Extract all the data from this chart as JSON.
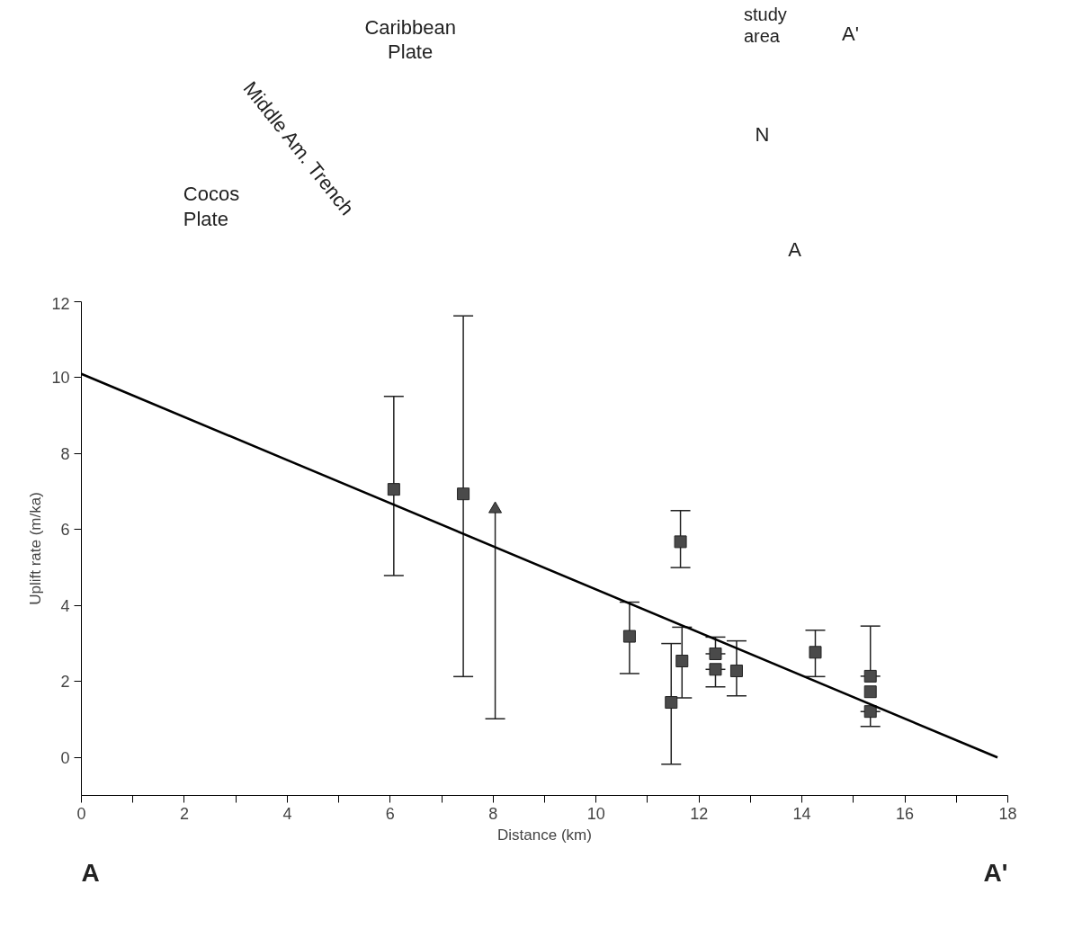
{
  "chart_data": {
    "type": "scatter",
    "xlabel": "Distance (km)",
    "ylabel": "Uplift rate (m/ka)",
    "xlim": [
      0,
      18
    ],
    "ylim": [
      -1,
      12
    ],
    "xticks": [
      0,
      {
        "value": 1,
        "label": null
      },
      2,
      {
        "value": 3,
        "label": null
      },
      4,
      {
        "value": 5,
        "label": null
      },
      6,
      {
        "value": 7,
        "label": null
      },
      8,
      {
        "value": 9,
        "label": null
      },
      10,
      {
        "value": 11,
        "label": null
      },
      12,
      {
        "value": 13,
        "label": null
      },
      14,
      {
        "value": 15,
        "label": null
      },
      16,
      {
        "value": 17,
        "label": null
      },
      18
    ],
    "yticks": [
      0,
      2,
      4,
      6,
      8,
      10,
      12
    ],
    "grid": false,
    "series": [
      {
        "marker": "square",
        "color": "#4a4a4a",
        "x": [
          6.07,
          7.42,
          10.65,
          11.64,
          11.46,
          11.67,
          12.32,
          12.32,
          12.73,
          14.26,
          15.33,
          15.33,
          15.33
        ],
        "values": [
          7.06,
          6.94,
          3.19,
          5.68,
          1.45,
          2.54,
          2.73,
          2.32,
          2.28,
          2.77,
          2.14,
          1.73,
          1.21
        ],
        "errors": [
          [
            4.79,
            9.51
          ],
          [
            2.13,
            11.63
          ],
          [
            2.21,
            4.09
          ],
          [
            5.0,
            6.5
          ],
          [
            -0.18,
            3.0
          ],
          [
            1.57,
            3.43
          ],
          [
            2.73,
            3.17
          ],
          [
            1.86,
            2.32
          ],
          [
            1.62,
            3.07
          ],
          [
            2.13,
            3.35
          ],
          [
            2.14,
            3.46
          ],
          null,
          [
            0.82,
            1.21
          ]
        ]
      },
      {
        "marker": "triangle",
        "color": "#4a4a4a",
        "x": [
          8.04
        ],
        "values": [
          6.54
        ],
        "errors": [
          [
            1.02,
            6.54
          ]
        ]
      },
      {
        "type": "line",
        "color": "#000000",
        "x": [
          0,
          17.8
        ],
        "values": [
          10.1,
          0.0
        ]
      }
    ],
    "annotations": [
      "Caribbean\nPlate",
      "Cocos\nPlate",
      "Middle Am. Trench",
      "study\narea",
      "A'",
      "A",
      "N",
      "A",
      "A'"
    ]
  }
}
